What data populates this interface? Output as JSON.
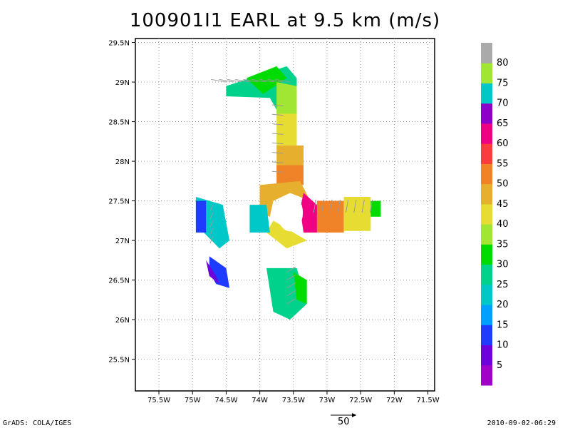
{
  "title": "100901I1 EARL at 9.5 km (m/s)",
  "footer_left": "GrADS: COLA/IGES",
  "footer_right": "2010-09-02-06:29",
  "reference_vector": {
    "label": "50",
    "value": 50
  },
  "chart_data": {
    "type": "heatmap",
    "title": "100901I1 EARL at 9.5 km (m/s)",
    "xlim": [
      -75.85,
      -71.4
    ],
    "ylim": [
      25.1,
      29.55
    ],
    "x_ticks": [
      {
        "value": -75.5,
        "label": "75.5W"
      },
      {
        "value": -75,
        "label": "75W"
      },
      {
        "value": -74.5,
        "label": "74.5W"
      },
      {
        "value": -74,
        "label": "74W"
      },
      {
        "value": -73.5,
        "label": "73.5W"
      },
      {
        "value": -73,
        "label": "73W"
      },
      {
        "value": -72.5,
        "label": "72.5W"
      },
      {
        "value": -72,
        "label": "72W"
      },
      {
        "value": -71.5,
        "label": "71.5W"
      }
    ],
    "y_ticks": [
      {
        "value": 25.5,
        "label": "25.5N"
      },
      {
        "value": 26,
        "label": "26N"
      },
      {
        "value": 26.5,
        "label": "26.5N"
      },
      {
        "value": 27,
        "label": "27N"
      },
      {
        "value": 27.5,
        "label": "27.5N"
      },
      {
        "value": 28,
        "label": "28N"
      },
      {
        "value": 28.5,
        "label": "28.5N"
      },
      {
        "value": 29,
        "label": "29N"
      },
      {
        "value": 29.5,
        "label": "29.5N"
      }
    ],
    "grid": true,
    "colorbar": {
      "labels": [
        "5",
        "10",
        "15",
        "20",
        "25",
        "30",
        "35",
        "40",
        "45",
        "50",
        "55",
        "60",
        "65",
        "70",
        "75",
        "80"
      ],
      "colors": [
        "#a000c8",
        "#6e00dc",
        "#1e3cff",
        "#00a0ff",
        "#00c8c8",
        "#00d28c",
        "#00dc00",
        "#a0e632",
        "#e6dc32",
        "#e6af2d",
        "#f08228",
        "#fa3c3c",
        "#f00082",
        "#8c00c8",
        "#00c8c8",
        "#a0e632",
        "#aaaaaa"
      ]
    },
    "wind_field": [
      {
        "lon": -73.7,
        "lat": 28.9,
        "speed": 38
      },
      {
        "lon": -73.6,
        "lat": 28.2,
        "speed": 40
      },
      {
        "lon": -73.6,
        "lat": 27.9,
        "speed": 46
      },
      {
        "lon": -73.2,
        "lat": 27.4,
        "speed": 62
      },
      {
        "lon": -72.9,
        "lat": 27.3,
        "speed": 52
      },
      {
        "lon": -72.6,
        "lat": 27.3,
        "speed": 44
      },
      {
        "lon": -73.7,
        "lat": 27.1,
        "speed": 40
      },
      {
        "lon": -74.0,
        "lat": 27.3,
        "speed": 24
      },
      {
        "lon": -74.7,
        "lat": 27.2,
        "speed": 20
      },
      {
        "lon": -74.6,
        "lat": 26.6,
        "speed": 12
      },
      {
        "lon": -73.5,
        "lat": 26.3,
        "speed": 28
      }
    ]
  }
}
